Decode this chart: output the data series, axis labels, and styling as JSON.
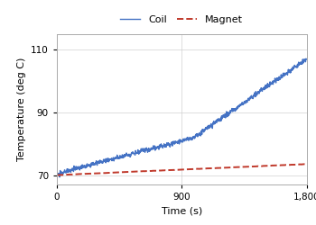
{
  "title": "",
  "xlabel": "Time (s)",
  "ylabel": "Temperature (deg C)",
  "xlim": [
    0,
    1800
  ],
  "ylim": [
    67,
    115
  ],
  "yticks": [
    70,
    90,
    110
  ],
  "xticks": [
    0,
    900,
    1800
  ],
  "xtick_labels": [
    "0",
    "900",
    "1,800"
  ],
  "coil_color": "#4472C4",
  "magnet_color": "#C0392B",
  "coil_label": "Coil",
  "magnet_label": "Magnet",
  "coil_start": 70.0,
  "coil_end": 107.0,
  "magnet_start": 70.0,
  "magnet_end": 73.5,
  "seed": 10
}
